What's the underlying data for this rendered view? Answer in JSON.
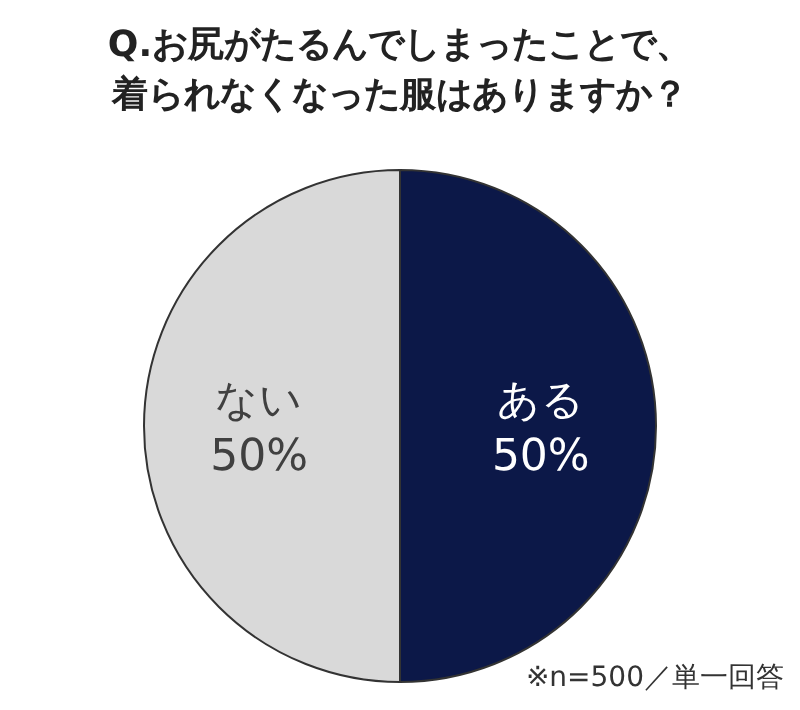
{
  "chart_data": {
    "type": "pie",
    "title": "Q.お尻がたるんでしまったことで、着られなくなった服はありますか？",
    "categories": [
      "ある",
      "ない"
    ],
    "values": [
      50,
      50
    ],
    "value_labels": [
      "50%",
      "50%"
    ],
    "colors": [
      "#0c1848",
      "#d9d9d9"
    ],
    "annotations": [
      "※n=500／単一回答"
    ],
    "legend": false
  }
}
